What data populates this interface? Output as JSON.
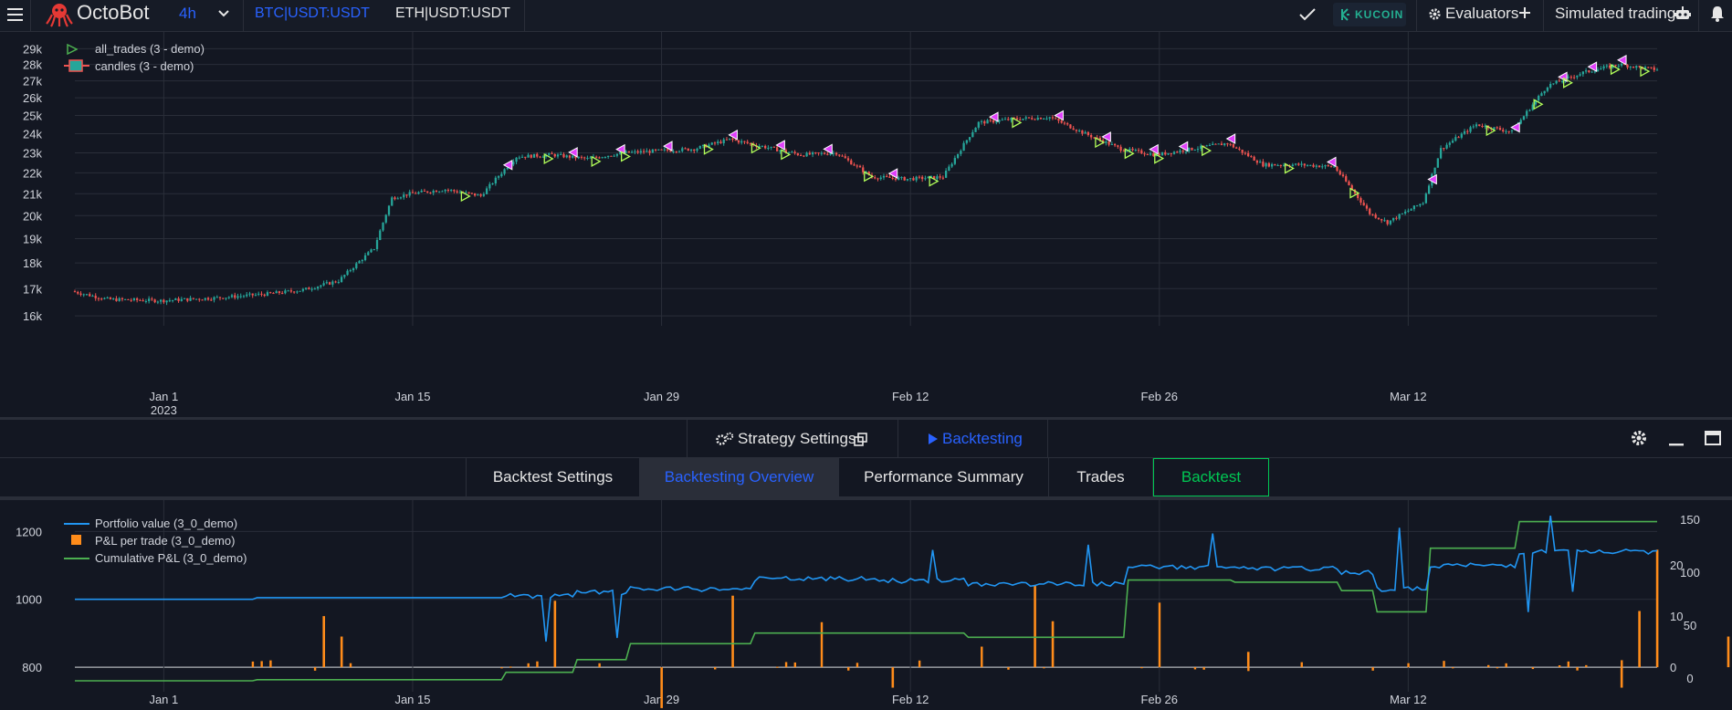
{
  "nav": {
    "brand": "OctoBot",
    "timeframe": "4h",
    "pairs": [
      "BTC|USDT:USDT",
      "ETH|USDT:USDT"
    ],
    "exchange_label": "KUCOIN",
    "evaluators_label": "Evaluators",
    "mode_label": "Simulated trading"
  },
  "colors": {
    "accent": "#2962ff",
    "up": "#26a69a",
    "down": "#ef5350",
    "trade_marker": "#e040fb",
    "portfolio": "#2196f3",
    "pnl_bar": "#ff8c1a",
    "cumulative": "#4caf50",
    "backtest_green": "#00c853"
  },
  "price_chart": {
    "legend": [
      "all_trades (3 - demo)",
      "candles (3 - demo)"
    ],
    "y_ticks": [
      "29k",
      "28k",
      "27k",
      "26k",
      "25k",
      "24k",
      "23k",
      "22k",
      "21k",
      "20k",
      "19k",
      "18k",
      "17k",
      "16k"
    ],
    "x_ticks": [
      "Jan 1",
      "Jan 15",
      "Jan 29",
      "Feb 12",
      "Feb 26",
      "Mar 12"
    ],
    "year_label": "2023"
  },
  "panel": {
    "strategy_settings_label": "Strategy Settings",
    "backtesting_label": "Backtesting",
    "tabs": [
      "Backtest Settings",
      "Backtesting Overview",
      "Performance Summary",
      "Trades"
    ],
    "active_tab": "Backtesting Overview",
    "backtest_button": "Backtest"
  },
  "overview_chart": {
    "legend": [
      "Portfolio value (3_0_demo)",
      "P&L per trade (3_0_demo)",
      "Cumulative P&L (3_0_demo)"
    ],
    "y_left_ticks": [
      "1200",
      "1000",
      "800"
    ],
    "y_right_outer_ticks": [
      "150",
      "100",
      "50",
      "0"
    ],
    "y_right_inner_ticks": [
      "20",
      "10",
      "0"
    ],
    "x_ticks": [
      "Jan 1",
      "Jan 15",
      "Jan 29",
      "Feb 12",
      "Feb 26",
      "Mar 12"
    ]
  },
  "chart_data": [
    {
      "type": "candlestick",
      "legend": [
        "all_trades (3 - demo)",
        "candles (3 - demo)"
      ],
      "x": [
        "2022-12-27",
        "2022-12-29",
        "2023-01-01",
        "2023-01-04",
        "2023-01-07",
        "2023-01-09",
        "2023-01-11",
        "2023-01-13",
        "2023-01-14",
        "2023-01-15",
        "2023-01-17",
        "2023-01-19",
        "2023-01-21",
        "2023-01-23",
        "2023-01-25",
        "2023-01-27",
        "2023-01-29",
        "2023-01-31",
        "2023-02-02",
        "2023-02-04",
        "2023-02-06",
        "2023-02-08",
        "2023-02-10",
        "2023-02-12",
        "2023-02-14",
        "2023-02-16",
        "2023-02-18",
        "2023-02-20",
        "2023-02-22",
        "2023-02-24",
        "2023-02-26",
        "2023-02-28",
        "2023-03-02",
        "2023-03-04",
        "2023-03-06",
        "2023-03-08",
        "2023-03-10",
        "2023-03-11",
        "2023-03-13",
        "2023-03-14",
        "2023-03-16",
        "2023-03-18",
        "2023-03-20",
        "2023-03-22",
        "2023-03-24",
        "2023-03-26"
      ],
      "price": [
        16900,
        16600,
        16550,
        16650,
        16800,
        16950,
        17300,
        18600,
        20800,
        21000,
        21200,
        20900,
        22800,
        22900,
        22700,
        23000,
        23100,
        23200,
        23700,
        23300,
        22900,
        23000,
        21800,
        21700,
        21800,
        24600,
        24800,
        24900,
        24000,
        23200,
        22900,
        23200,
        23500,
        22400,
        22400,
        22300,
        20100,
        19700,
        20600,
        23200,
        24500,
        24100,
        26700,
        27500,
        28000,
        27700
      ],
      "y_range": [
        16000,
        29000
      ],
      "x_ticks": [
        "Jan 1",
        "Jan 15",
        "Jan 29",
        "Feb 12",
        "Feb 26",
        "Mar 12"
      ]
    },
    {
      "type": "line",
      "legend": [
        "Portfolio value (3_0_demo)",
        "P&L per trade (3_0_demo)",
        "Cumulative P&L (3_0_demo)"
      ],
      "x": [
        "2022-12-27",
        "2023-01-06",
        "2023-01-20",
        "2023-01-24",
        "2023-01-27",
        "2023-02-03",
        "2023-02-10",
        "2023-02-15",
        "2023-02-24",
        "2023-03-02",
        "2023-03-08",
        "2023-03-10",
        "2023-03-13",
        "2023-03-18",
        "2023-03-26"
      ],
      "series": [
        {
          "name": "Portfolio value (3_0_demo)",
          "values": [
            1000,
            1005,
            1010,
            1020,
            1030,
            1060,
            1055,
            1045,
            1095,
            1090,
            1080,
            1030,
            1100,
            1140,
            1150
          ]
        },
        {
          "name": "Cumulative P&L (3_0_demo)",
          "values": [
            -5,
            -4,
            3,
            15,
            30,
            40,
            40,
            36,
            90,
            88,
            80,
            60,
            120,
            145,
            150
          ]
        }
      ],
      "y_left_range": [
        760,
        1260
      ],
      "y_right_range": [
        -5,
        155
      ]
    }
  ]
}
